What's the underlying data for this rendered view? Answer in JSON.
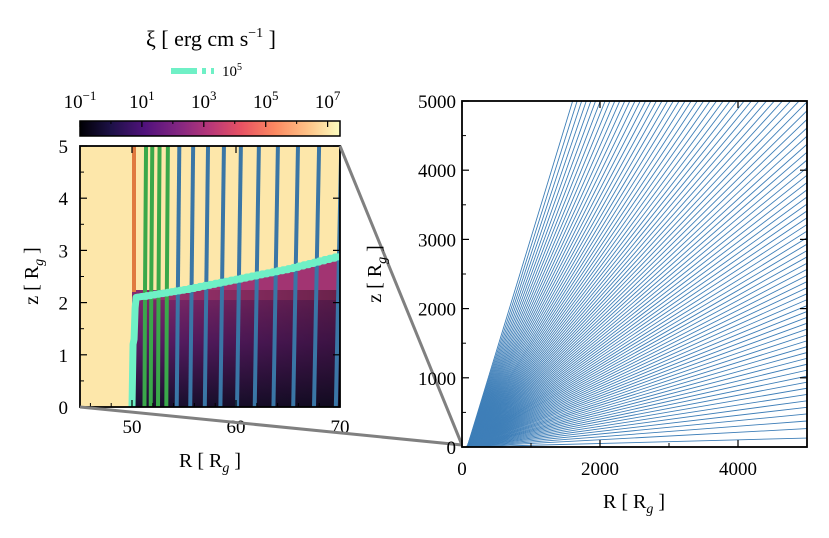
{
  "colors": {
    "streamline_left": "#3a76a6",
    "streamline_green": "#3aa84a",
    "streamline_right": "#3f7fb8",
    "ion_front": "#6ff0c6",
    "zoom_connector": "#808080",
    "hot_background": "#fde7aa"
  },
  "colorbar": {
    "title": "ξ [ erg cm s",
    "title_sup": "−1",
    "title_end": " ]",
    "legend_label": "10",
    "legend_label_sup": "5",
    "colormap": "magma",
    "scale": "log",
    "tick_labels": [
      {
        "base": "10",
        "exp": "−1"
      },
      {
        "base": "10",
        "exp": "1"
      },
      {
        "base": "10",
        "exp": "3"
      },
      {
        "base": "10",
        "exp": "5"
      },
      {
        "base": "10",
        "exp": "7"
      }
    ]
  },
  "chart_data": [
    {
      "type": "heatmap",
      "panel": "left",
      "xlabel": "R [ R",
      "xlabel_sub": "g",
      "xlabel_end": " ]",
      "ylabel": "z [ R",
      "ylabel_sub": "g",
      "ylabel_end": " ]",
      "xlim": [
        45,
        70
      ],
      "ylim": [
        0,
        5
      ],
      "xticks": [
        "50",
        "60",
        "70"
      ],
      "yticks": [
        "0",
        "1",
        "2",
        "3",
        "4",
        "5"
      ],
      "ionization_front_xi": 100000,
      "ionization_front": {
        "x": [
          50.0,
          50.1,
          50.2,
          50.3,
          50.4,
          51.0,
          55.0,
          60.0,
          65.0,
          70.0
        ],
        "z": [
          0.0,
          1.2,
          1.3,
          1.9,
          2.1,
          2.12,
          2.25,
          2.45,
          2.65,
          2.9
        ]
      },
      "streamlines_green_x0": [
        51.2,
        51.8,
        52.5,
        53.3
      ],
      "streamlines_blue_x0": [
        54.3,
        55.6,
        57.0,
        58.5,
        60.1,
        61.8,
        63.6,
        65.5,
        67.5,
        69.6
      ]
    },
    {
      "type": "line",
      "panel": "right",
      "xlabel": "R [ R",
      "xlabel_sub": "g",
      "xlabel_end": " ]",
      "ylabel": "z [ R",
      "ylabel_sub": "g",
      "ylabel_end": " ]",
      "xlim": [
        0,
        5000
      ],
      "ylim": [
        0,
        5000
      ],
      "xticks": [
        "0",
        "2000",
        "4000"
      ],
      "yticks": [
        "0",
        "1000",
        "2000",
        "3000",
        "4000",
        "5000"
      ],
      "streamline_count": 90,
      "streamline_angle_range_deg": [
        1.5,
        73
      ]
    }
  ]
}
